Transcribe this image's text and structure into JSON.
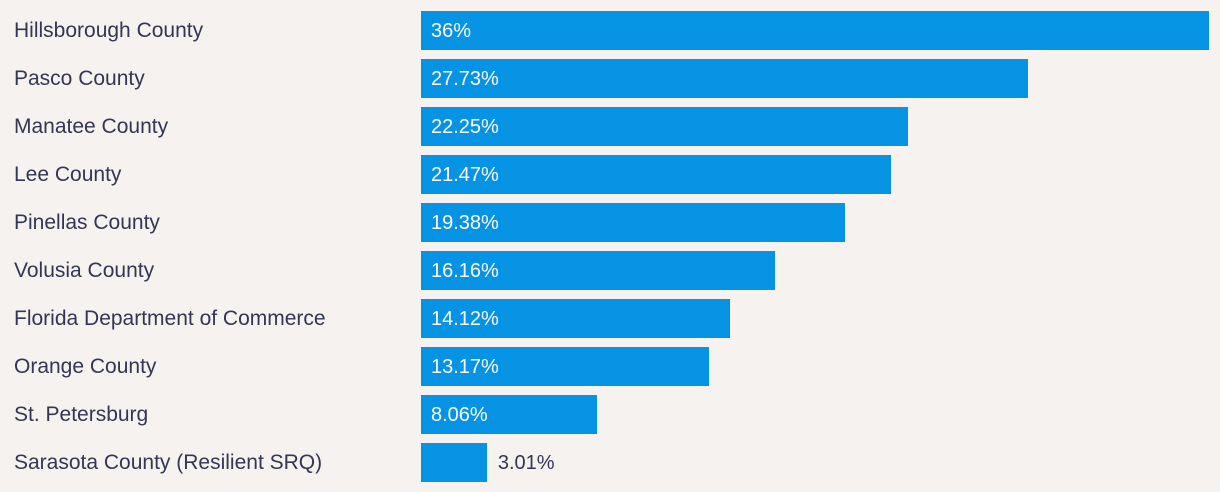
{
  "chart_data": {
    "type": "bar",
    "orientation": "horizontal",
    "title": "",
    "xlabel": "",
    "ylabel": "",
    "xlim": [
      0,
      36
    ],
    "grid": false,
    "legend": false,
    "categories": [
      "Hillsborough County",
      "Pasco County",
      "Manatee County",
      "Lee County",
      "Pinellas County",
      "Volusia County",
      "Florida Department of Commerce",
      "Orange County",
      "St. Petersburg",
      "Sarasota County (Resilient SRQ)"
    ],
    "values": [
      36,
      27.73,
      22.25,
      21.47,
      19.38,
      16.16,
      14.12,
      13.17,
      8.06,
      3.01
    ],
    "value_labels": [
      "36%",
      "27.73%",
      "22.25%",
      "21.47%",
      "19.38%",
      "16.16%",
      "14.12%",
      "13.17%",
      "8.06%",
      "3.01%"
    ],
    "colors": {
      "bar": "#0693e3",
      "background": "#f6f2f0",
      "category_text": "#333753",
      "value_text_inside": "#ffffff",
      "value_text_outside": "#333753"
    }
  }
}
